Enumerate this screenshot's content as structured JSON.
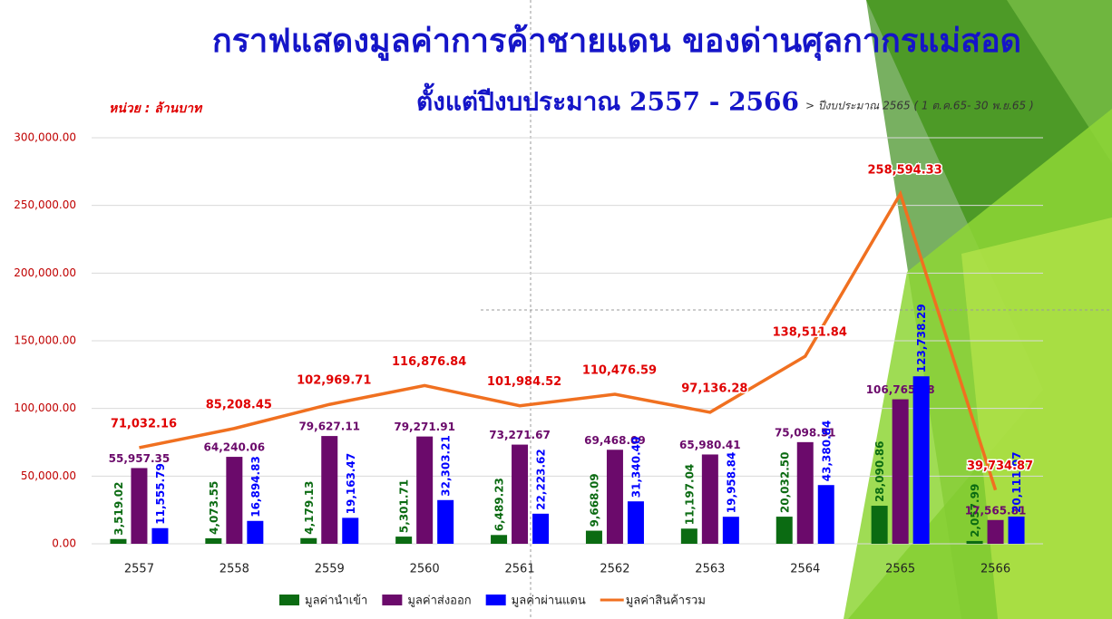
{
  "chart_data": {
    "type": "bar",
    "title": "กราฟแสดงมูลค่าการค้าชายแดน ของด่านศุลกากรแม่สอด",
    "subtitle": "ตั้งแต่ปีงบประมาณ 2557 - 2566",
    "note": "> ปีงบประมาณ 2565 ( 1 ต.ค.65- 30 พ.ย.65 )",
    "unit": "หน่วย : ล้านบาท",
    "categories": [
      "2557",
      "2558",
      "2559",
      "2560",
      "2561",
      "2562",
      "2563",
      "2564",
      "2565",
      "2566"
    ],
    "ylim": [
      0,
      300000
    ],
    "yticks": [
      {
        "value": 0,
        "label": "0.00"
      },
      {
        "value": 50000,
        "label": "50,000.00"
      },
      {
        "value": 100000,
        "label": "100,000.00"
      },
      {
        "value": 150000,
        "label": "150,000.00"
      },
      {
        "value": 200000,
        "label": "200,000.00"
      },
      {
        "value": 250000,
        "label": "250,000.00"
      },
      {
        "value": 300000,
        "label": "300,000.00"
      }
    ],
    "grid": true,
    "series": [
      {
        "name": "มูลค่านำเข้า",
        "type": "bar",
        "color": "#0b6b12",
        "values": [
          3519.02,
          4073.55,
          4179.13,
          5301.71,
          6489.23,
          9668.09,
          11197.04,
          20032.5,
          28090.86,
          2057.99
        ],
        "value_labels": [
          "3,519.02",
          "4,073.55",
          "4,179.13",
          "5,301.71",
          "6,489.23",
          "9,668.09",
          "11,197.04",
          "20,032.50",
          "28,090.86",
          "2,057.99"
        ]
      },
      {
        "name": "มูลค่าส่งออก",
        "type": "bar",
        "color": "#6b0a6b",
        "values": [
          55957.35,
          64240.06,
          79627.11,
          79271.91,
          73271.67,
          69468.09,
          65980.41,
          75098.51,
          106765.18,
          17565.81
        ],
        "value_labels": [
          "55,957.35",
          "64,240.06",
          "79,627.11",
          "79,271.91",
          "73,271.67",
          "69,468.09",
          "65,980.41",
          "75,098.51",
          "106,765.18",
          "17,565.81"
        ]
      },
      {
        "name": "มูลค่าผ่านแดน",
        "type": "bar",
        "color": "#0000ff",
        "values": [
          11555.79,
          16894.83,
          19163.47,
          32303.21,
          22223.62,
          31340.4,
          19958.84,
          43380.84,
          123738.29,
          20111.07
        ],
        "value_labels": [
          "11,555.79",
          "16,894.83",
          "19,163.47",
          "32,303.21",
          "22,223.62",
          "31,340.40",
          "19,958.84",
          "43,380.84",
          "123,738.29",
          "20,111.07"
        ]
      },
      {
        "name": "มูลค่าสินค้ารวม",
        "type": "line",
        "color": "#f07020",
        "values": [
          71032.16,
          85208.45,
          102969.71,
          116876.84,
          101984.52,
          110476.59,
          97136.28,
          138511.84,
          258594.33,
          39734.87
        ],
        "value_labels": [
          "71,032.16",
          "85,208.45",
          "102,969.71",
          "116,876.84",
          "101,984.52",
          "110,476.59",
          "97,136.28",
          "138,511.84",
          "258,594.33",
          "39,734.87"
        ]
      }
    ]
  }
}
